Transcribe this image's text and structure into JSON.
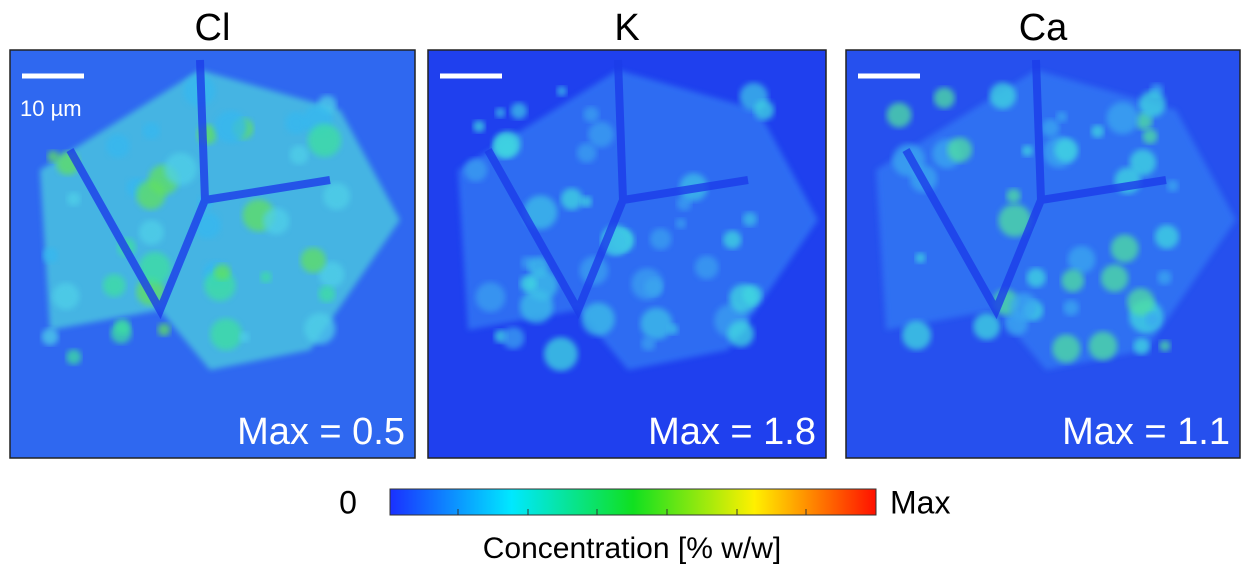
{
  "panels": [
    {
      "title": "Cl",
      "max_label": "Max = 0.5"
    },
    {
      "title": "K",
      "max_label": "Max = 1.8"
    },
    {
      "title": "Ca",
      "max_label": "Max = 1.1"
    }
  ],
  "scale_bar": "10 µm",
  "colorbar": {
    "min_label": "0",
    "max_label": "Max",
    "title": "Concentration [% w/w]"
  }
}
